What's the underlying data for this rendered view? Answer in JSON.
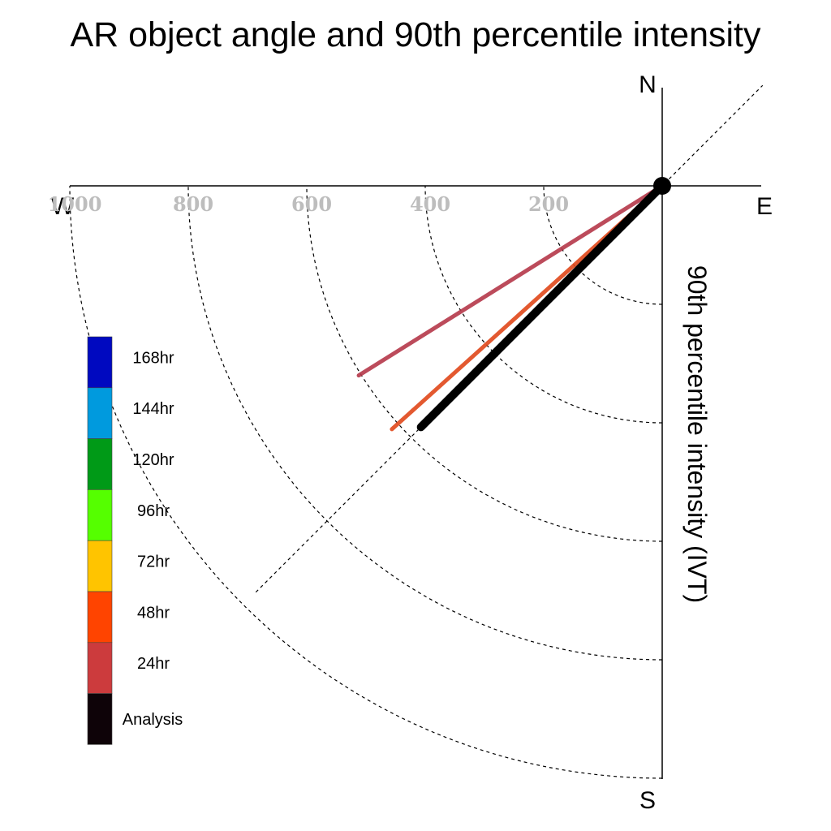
{
  "chart_data": {
    "type": "polar-line",
    "title": "AR object angle and 90th percentile intensity",
    "axis_label": "90th percentile intensity (IVT)",
    "compass": {
      "north": "N",
      "south": "S",
      "east": "E",
      "west": "W"
    },
    "radial_ticks": [
      200,
      400,
      600,
      800,
      1000
    ],
    "radial_tick_labels": [
      "200",
      "400",
      "600",
      "800",
      "1000"
    ],
    "radial_max": 1000,
    "guide_angle_deg": 225,
    "series": [
      {
        "name": "24hr",
        "color": "#B5384A",
        "angle_deg": 238,
        "intensity": 604,
        "weight": "normal"
      },
      {
        "name": "48hr",
        "color": "#E0481A",
        "angle_deg": 228,
        "intensity": 614,
        "weight": "normal"
      },
      {
        "name": "Analysis",
        "color": "#000000",
        "angle_deg": 225,
        "intensity": 576,
        "weight": "bold"
      }
    ],
    "legend": [
      {
        "label": "168hr",
        "color": "#0009C0"
      },
      {
        "label": "144hr",
        "color": "#009ADE"
      },
      {
        "label": "120hr",
        "color": "#009A17"
      },
      {
        "label": "96hr",
        "color": "#55FF00"
      },
      {
        "label": "72hr",
        "color": "#FFC400"
      },
      {
        "label": "48hr",
        "color": "#FF4400"
      },
      {
        "label": "24hr",
        "color": "#CC3B3D"
      },
      {
        "label": "Analysis",
        "color": "#0E0308"
      }
    ],
    "legend_position": "left"
  }
}
